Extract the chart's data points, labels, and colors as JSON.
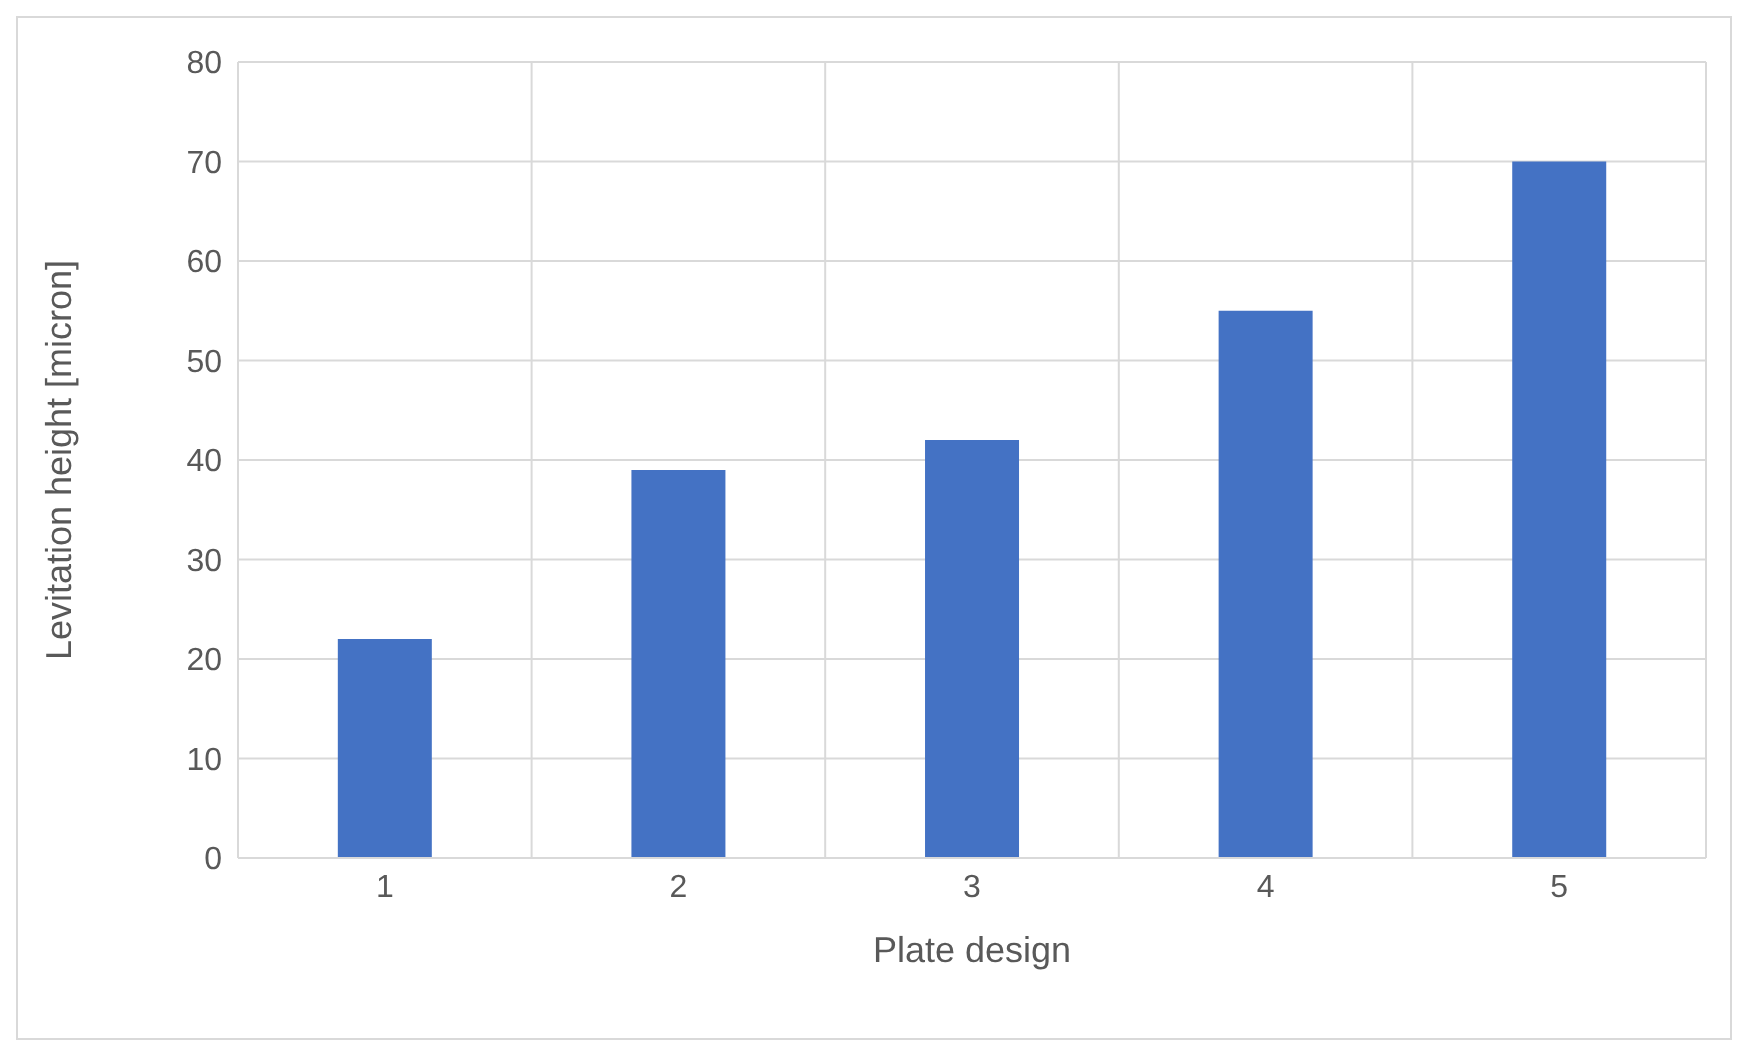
{
  "chart_data": {
    "type": "bar",
    "xlabel": "Plate design",
    "ylabel": "Levitation height [micron]",
    "categories": [
      "1",
      "2",
      "3",
      "4",
      "5"
    ],
    "values": [
      22,
      39,
      42,
      55,
      70
    ],
    "color": "#4472c4",
    "ylim": [
      0,
      80
    ],
    "yticks": [
      0,
      10,
      20,
      30,
      40,
      50,
      60,
      70,
      80
    ],
    "grid": true
  }
}
